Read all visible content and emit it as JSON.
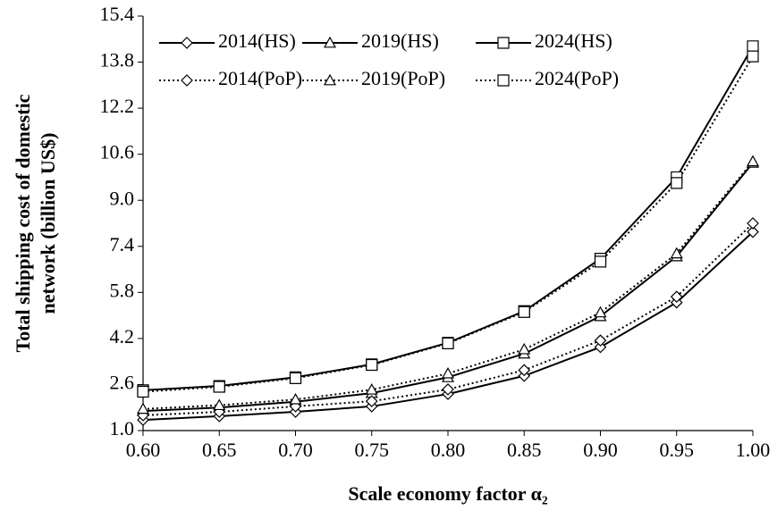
{
  "chart_data": {
    "type": "line",
    "x_label": "Scale economy factor α₂",
    "y_label": [
      "Total shipping cost of domestic",
      "network (billion US$)"
    ],
    "x": [
      0.6,
      0.65,
      0.7,
      0.75,
      0.8,
      0.85,
      0.9,
      0.95,
      1.0
    ],
    "series": [
      {
        "name": "2014(HS)",
        "color": "#000000",
        "marker": "diamond",
        "dash": "solid",
        "values": [
          1.37,
          1.5,
          1.65,
          1.84,
          2.27,
          2.9,
          3.9,
          5.45,
          7.9
        ]
      },
      {
        "name": "2019(HS)",
        "color": "#000000",
        "marker": "triangle",
        "dash": "solid",
        "values": [
          1.68,
          1.8,
          2.0,
          2.3,
          2.85,
          3.67,
          4.97,
          7.05,
          10.3
        ]
      },
      {
        "name": "2024(HS)",
        "color": "#000000",
        "marker": "square",
        "dash": "solid",
        "values": [
          2.4,
          2.55,
          2.85,
          3.3,
          4.05,
          5.15,
          6.97,
          9.8,
          14.35
        ]
      },
      {
        "name": "2014(PoP)",
        "color": "#000000",
        "marker": "diamond",
        "dash": "dotted",
        "values": [
          1.53,
          1.65,
          1.84,
          2.02,
          2.43,
          3.1,
          4.13,
          5.65,
          8.2
        ]
      },
      {
        "name": "2019(PoP)",
        "color": "#000000",
        "marker": "triangle",
        "dash": "dotted",
        "values": [
          1.75,
          1.88,
          2.08,
          2.42,
          2.98,
          3.82,
          5.1,
          7.15,
          10.35
        ]
      },
      {
        "name": "2024(PoP)",
        "color": "#000000",
        "marker": "square",
        "dash": "dotted",
        "values": [
          2.35,
          2.52,
          2.82,
          3.28,
          4.03,
          5.12,
          6.87,
          9.6,
          14.0
        ]
      }
    ],
    "xlim": [
      0.6,
      1.0
    ],
    "xticks": [
      {
        "value": 0.6,
        "label": "0.60"
      },
      {
        "value": 0.65,
        "label": "0.65"
      },
      {
        "value": 0.7,
        "label": "0.70"
      },
      {
        "value": 0.75,
        "label": "0.75"
      },
      {
        "value": 0.8,
        "label": "0.80"
      },
      {
        "value": 0.85,
        "label": "0.85"
      },
      {
        "value": 0.9,
        "label": "0.90"
      },
      {
        "value": 0.95,
        "label": "0.95"
      },
      {
        "value": 1.0,
        "label": "1.00"
      }
    ],
    "ylim": [
      1.0,
      15.4
    ],
    "yticks": [
      {
        "value": 1.0,
        "label": "1.0"
      },
      2.6,
      4.2,
      5.8,
      7.4,
      {
        "value": 9.0,
        "label": "9.0"
      },
      10.6,
      12.2,
      13.8,
      15.4
    ],
    "grid": false,
    "legend": "top"
  }
}
